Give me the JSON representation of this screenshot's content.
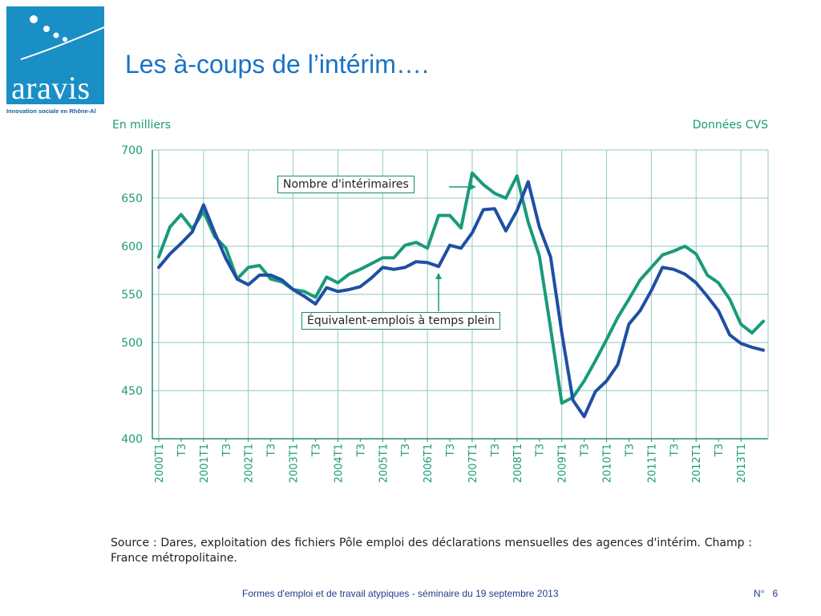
{
  "slide": {
    "title": "Les à-coups de l’intérim….",
    "logo": {
      "name": "aravis",
      "tagline": "Innovation sociale en Rhône-Al"
    },
    "footer": {
      "text": "Formes d'emploi et de travail atypiques - séminaire du 19 septembre 2013",
      "page_label": "N°",
      "page_number": "6"
    },
    "source": "Source : Dares, exploitation des fichiers Pôle emploi des déclarations mensuelles des agences d'intérim. Champ : France métropolitaine."
  },
  "colors": {
    "title": "#1a73c6",
    "logo_bg": "#1a8fc6",
    "series_green": "#1a9a7a",
    "series_blue": "#1f4fa3",
    "grid": "#8ec9bd",
    "axis_text": "#1a9a7a"
  },
  "chart_data": {
    "type": "line",
    "unit_label": "En milliers",
    "note_label": "Données CVS",
    "ylim": [
      400,
      700
    ],
    "yticks": [
      400,
      450,
      500,
      550,
      600,
      650,
      700
    ],
    "grid": true,
    "x_tick_labels": [
      "2000T1",
      "T3",
      "2001T1",
      "T3",
      "2002T1",
      "T3",
      "2003T1",
      "T3",
      "2004T1",
      "T3",
      "2005T1",
      "T3",
      "2006T1",
      "T3",
      "2007T1",
      "T3",
      "2008T1",
      "T3",
      "2009T1",
      "T3",
      "2010T1",
      "T3",
      "2011T1",
      "T3",
      "2012T1",
      "T3",
      "2013T1"
    ],
    "annotations": [
      {
        "text": "Nombre d'intérimaires",
        "series": 0
      },
      {
        "text": "Équivalent-emplois à temps plein",
        "series": 1
      }
    ],
    "series": [
      {
        "name": "Nombre d'intérimaires",
        "color": "#1a9a7a",
        "values": [
          589,
          620,
          633,
          618,
          636,
          610,
          598,
          566,
          578,
          580,
          566,
          563,
          555,
          553,
          547,
          568,
          562,
          571,
          576,
          582,
          588,
          588,
          601,
          604,
          598,
          632,
          632,
          619,
          676,
          664,
          655,
          650,
          673,
          625,
          590,
          515,
          437,
          443,
          460,
          481,
          503,
          526,
          545,
          565,
          578,
          591,
          595,
          600,
          592,
          570,
          562,
          545,
          519,
          510,
          522
        ]
      },
      {
        "name": "Équivalent-emplois à temps plein",
        "color": "#1f4fa3",
        "values": [
          578,
          592,
          603,
          615,
          643,
          614,
          587,
          566,
          560,
          570,
          570,
          565,
          555,
          548,
          540,
          557,
          553,
          555,
          558,
          567,
          578,
          576,
          578,
          584,
          583,
          579,
          601,
          598,
          614,
          638,
          639,
          616,
          637,
          667,
          620,
          589,
          510,
          440,
          423,
          449,
          460,
          477,
          519,
          533,
          554,
          578,
          576,
          571,
          562,
          548,
          533,
          508,
          499,
          495,
          492
        ]
      }
    ]
  }
}
